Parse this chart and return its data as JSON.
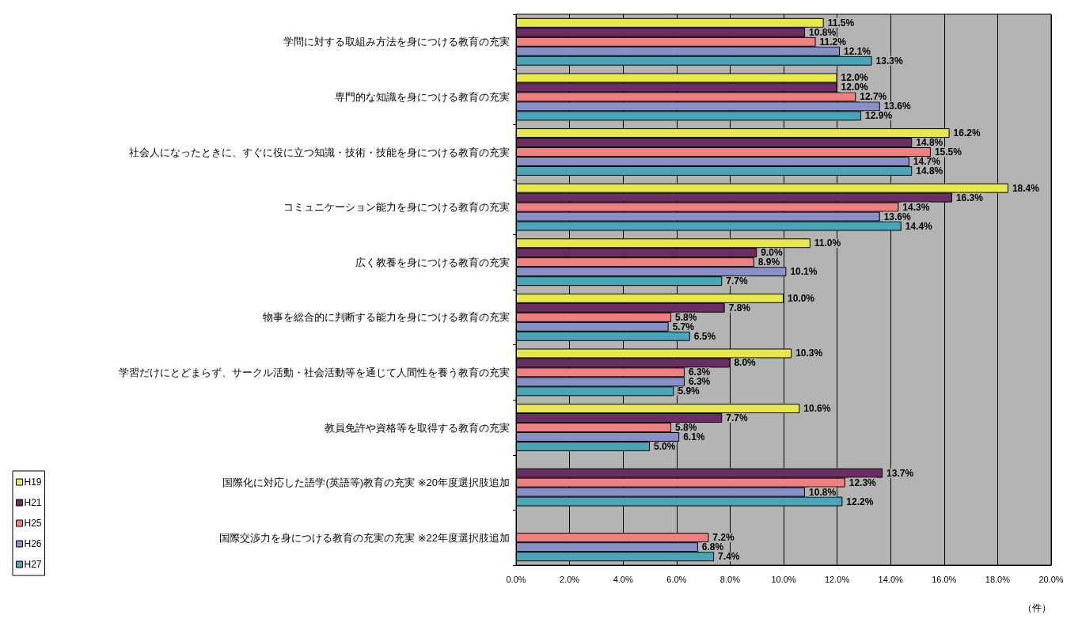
{
  "chart_data": {
    "type": "bar",
    "orientation": "horizontal",
    "xlabel": "（件）",
    "categories": [
      "学問に対する取組み方法を身につける教育の充実",
      "専門的な知識を身につける教育の充実",
      "社会人になったときに、すぐに役に立つ知識・技術・技能を身につける教育の充実",
      "コミュニケーション能力を身につける教育の充実",
      "広く教養を身につける教育の充実",
      "物事を総合的に判断する能力を身につける教育の充実",
      "学習だけにとどまらず、サークル活動・社会活動等を通じて人間性を養う教育の充実",
      "教員免許や資格等を取得する教育の充実",
      "国際化に対応した語学(英語等)教育の充実 ※20年度選択肢追加",
      "国際交渉力を身につける教育の充実の充実 ※22年度選択肢追加"
    ],
    "series": [
      {
        "name": "H19",
        "color": "#e8e84a",
        "values": [
          11.5,
          12.0,
          16.2,
          18.4,
          11.0,
          10.0,
          10.3,
          10.6,
          null,
          null
        ],
        "value_labels": [
          "11.5%",
          "12.0%",
          "16.2%",
          "18.4%",
          "11.0%",
          "10.0%",
          "10.3%",
          "10.6%",
          null,
          null
        ]
      },
      {
        "name": "H21",
        "color": "#6b2d63",
        "values": [
          10.8,
          12.0,
          14.8,
          16.3,
          9.0,
          7.8,
          8.0,
          7.7,
          13.7,
          null
        ],
        "value_labels": [
          "10.8%",
          "12.0%",
          "14.8%",
          "16.3%",
          "9.0%",
          "7.8%",
          "8.0%",
          "7.7%",
          "13.7%",
          null
        ]
      },
      {
        "name": "H25",
        "color": "#f08080",
        "values": [
          11.2,
          12.7,
          15.5,
          14.3,
          8.9,
          5.8,
          6.3,
          5.8,
          12.3,
          7.2
        ],
        "value_labels": [
          "11.2%",
          "12.7%",
          "15.5%",
          "14.3%",
          "8.9%",
          "5.8%",
          "6.3%",
          "5.8%",
          "12.3%",
          "7.2%"
        ]
      },
      {
        "name": "H26",
        "color": "#8890c8",
        "values": [
          12.1,
          13.6,
          14.7,
          13.6,
          10.1,
          5.7,
          6.3,
          6.1,
          10.8,
          6.8
        ],
        "value_labels": [
          "12.1%",
          "13.6%",
          "14.7%",
          "13.6%",
          "10.1%",
          "5.7%",
          "6.3%",
          "6.1%",
          "10.8%",
          "6.8%"
        ]
      },
      {
        "name": "H27",
        "color": "#48a6b8",
        "values": [
          13.3,
          12.9,
          14.8,
          14.4,
          7.7,
          6.5,
          5.9,
          5.0,
          12.2,
          7.4
        ],
        "value_labels": [
          "13.3%",
          "12.9%",
          "14.8%",
          "14.4%",
          "7.7%",
          "6.5%",
          "5.9%",
          "5.0%",
          "12.2%",
          "7.4%"
        ]
      }
    ],
    "xlim": [
      0,
      20
    ],
    "xticks": [
      {
        "value": 0,
        "label": "0.0%"
      },
      {
        "value": 2,
        "label": "2.0%"
      },
      {
        "value": 4,
        "label": "4.0%"
      },
      {
        "value": 6,
        "label": "6.0%"
      },
      {
        "value": 8,
        "label": "8.0%"
      },
      {
        "value": 10,
        "label": "10.0%"
      },
      {
        "value": 12,
        "label": "12.0%"
      },
      {
        "value": 14,
        "label": "14.0%"
      },
      {
        "value": 16,
        "label": "16.0%"
      },
      {
        "value": 18,
        "label": "18.0%"
      },
      {
        "value": 20,
        "label": "20.0%"
      }
    ],
    "grid": "x",
    "legend": "bottom left"
  }
}
